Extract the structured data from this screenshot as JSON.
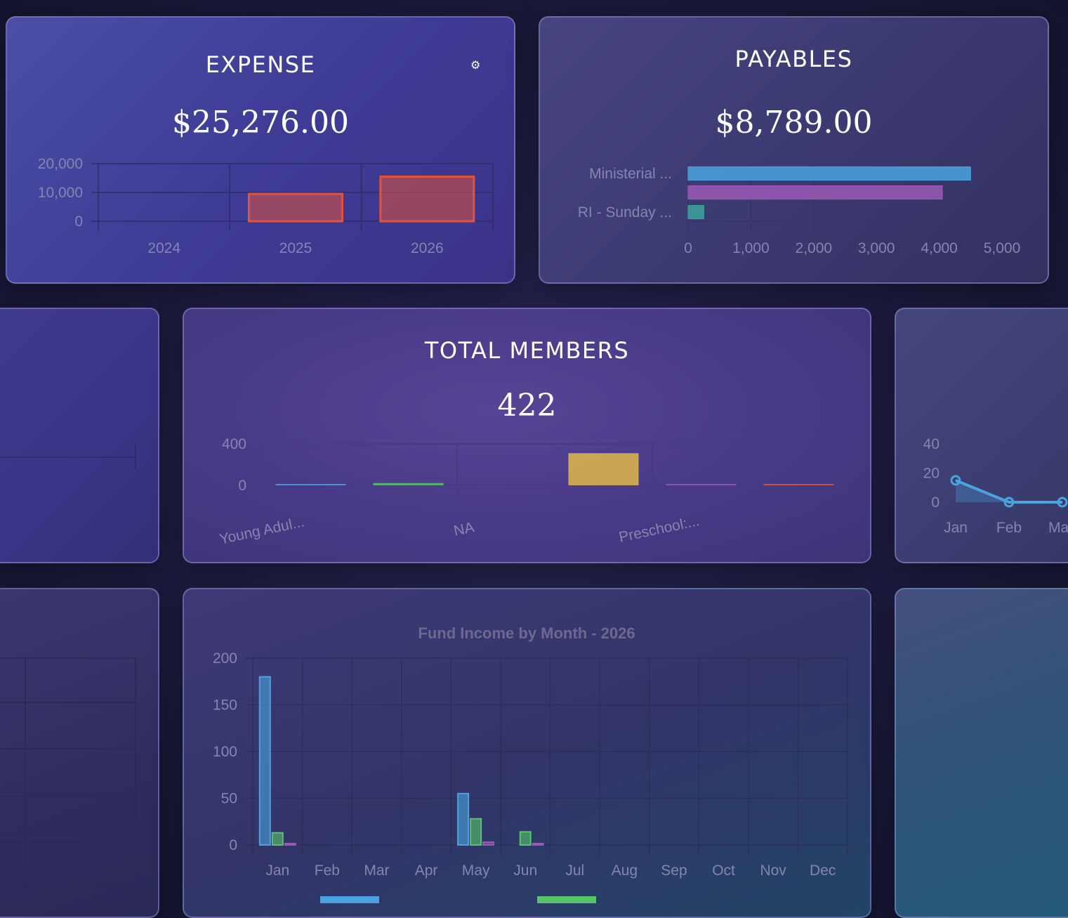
{
  "expense": {
    "title": "EXPENSE",
    "settings_icon": "gear-icon",
    "amount": "$25,276.00"
  },
  "payables": {
    "title": "PAYABLES",
    "amount": "$8,789.00"
  },
  "total_members": {
    "title": "TOTAL MEMBERS",
    "amount": "422"
  },
  "fund_income": {
    "title": "Fund Income by Month - 2026"
  },
  "colors": {
    "red": "#e0533f",
    "blue": "#4aa3df",
    "green": "#58c46a",
    "purple": "#9b59b6",
    "teal": "#3aa39a",
    "gold": "#e0b84a",
    "grid": "#2b2a5a",
    "tick": "#8585b0"
  },
  "chart_data": [
    {
      "id": "expense",
      "type": "bar",
      "categories": [
        "2024",
        "2025",
        "2026"
      ],
      "values": [
        0,
        9500,
        15500
      ],
      "yticks": [
        "0",
        "10,000",
        "20,000"
      ],
      "ylim": [
        0,
        20000
      ]
    },
    {
      "id": "payables",
      "type": "bar",
      "orientation": "horizontal",
      "categories": [
        "Ministerial ...",
        "",
        "RI - Sunday ..."
      ],
      "values": [
        4500,
        4050,
        250
      ],
      "xticks": [
        "0",
        "1,000",
        "2,000",
        "3,000",
        "4,000",
        "5,000"
      ],
      "xlim": [
        0,
        5000
      ]
    },
    {
      "id": "members",
      "type": "bar",
      "categories": [
        "Young Adul...",
        "",
        "NA",
        "",
        "Preschool:...",
        ""
      ],
      "values": [
        6,
        22,
        0,
        310,
        2,
        12
      ],
      "yticks": [
        "0",
        "400"
      ],
      "ylim": [
        0,
        400
      ]
    },
    {
      "id": "partial-line",
      "type": "line",
      "categories": [
        "Jan",
        "Feb",
        "Ma"
      ],
      "values": [
        15,
        0,
        0
      ],
      "yticks": [
        "0",
        "20",
        "40"
      ],
      "ylim": [
        0,
        40
      ]
    },
    {
      "id": "fund-income",
      "type": "bar",
      "title": "Fund Income by Month - 2026",
      "categories": [
        "Jan",
        "Feb",
        "Mar",
        "Apr",
        "May",
        "Jun",
        "Jul",
        "Aug",
        "Sep",
        "Oct",
        "Nov",
        "Dec"
      ],
      "series": [
        {
          "values": [
            180,
            0,
            0,
            0,
            55,
            0,
            0,
            0,
            0,
            0,
            0,
            0
          ]
        },
        {
          "values": [
            13,
            0,
            0,
            0,
            28,
            14,
            0,
            0,
            0,
            0,
            0,
            0
          ]
        },
        {
          "values": [
            1,
            0,
            0,
            0,
            3,
            1,
            0,
            0,
            0,
            0,
            0,
            0
          ]
        }
      ],
      "yticks": [
        "0",
        "50",
        "100",
        "150",
        "200"
      ],
      "ylim": [
        0,
        200
      ]
    }
  ]
}
